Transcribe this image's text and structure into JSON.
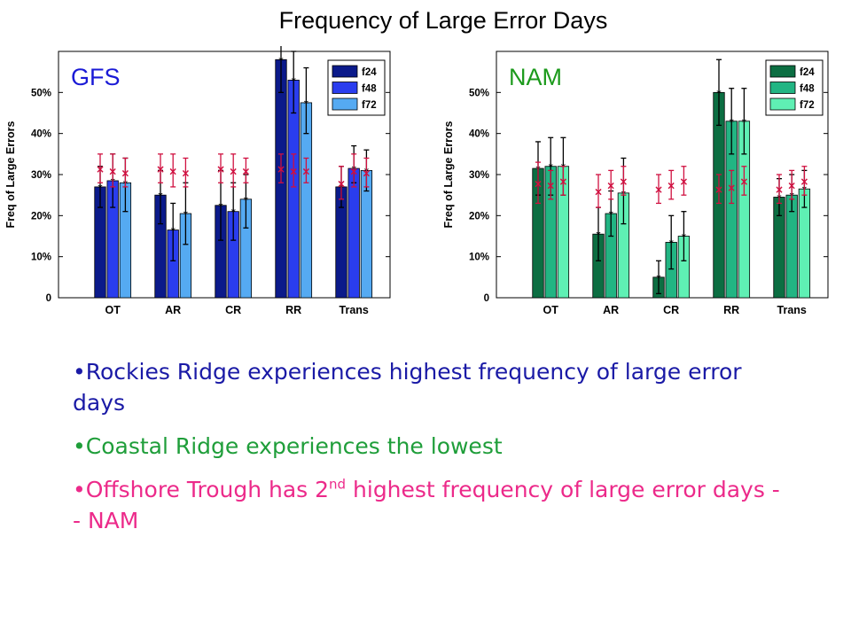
{
  "title": "Frequency of Large Error Days",
  "chart_data": [
    {
      "type": "bar",
      "panel_label": "GFS",
      "panel_label_color": "#1a1ad6",
      "ylabel": "Freq of Large Errors",
      "ylim": [
        0,
        60
      ],
      "yticks": [
        "0",
        "10%",
        "20%",
        "30%",
        "40%",
        "50%"
      ],
      "categories": [
        "OT",
        "AR",
        "CR",
        "RR",
        "Trans"
      ],
      "legend_position": "top-right",
      "series": [
        {
          "name": "f24",
          "color": "#0b1a8a",
          "values": [
            27,
            25,
            22.5,
            58,
            27
          ],
          "error": [
            [
              22,
              32
            ],
            [
              18,
              31
            ],
            [
              14,
              31
            ],
            [
              50,
              62
            ],
            [
              22,
              32
            ]
          ]
        },
        {
          "name": "f48",
          "color": "#2a3dee",
          "values": [
            28.5,
            16.5,
            21,
            53,
            31.5
          ],
          "error": [
            [
              22,
              35
            ],
            [
              9,
              23
            ],
            [
              14,
              28
            ],
            [
              45,
              60
            ],
            [
              28,
              37
            ]
          ]
        },
        {
          "name": "f72",
          "color": "#55aaf2",
          "values": [
            28,
            20.5,
            24,
            47.5,
            31
          ],
          "error": [
            [
              21,
              34
            ],
            [
              13,
              28
            ],
            [
              17,
              30
            ],
            [
              40,
              56
            ],
            [
              26,
              36
            ]
          ]
        }
      ],
      "ref_markers": [
        [
          31.5,
          31,
          30.5
        ],
        [
          31.5,
          31,
          30.5
        ],
        [
          31.5,
          31,
          31
        ],
        [
          31.5,
          31,
          31
        ],
        [
          28,
          31,
          30.5
        ]
      ],
      "ref_error": [
        [
          [
            28,
            35
          ],
          [
            27,
            35
          ],
          [
            27,
            34
          ]
        ],
        [
          [
            28,
            35
          ],
          [
            27,
            35
          ],
          [
            27,
            34
          ]
        ],
        [
          [
            28,
            35
          ],
          [
            27,
            35
          ],
          [
            28,
            34
          ]
        ],
        [
          [
            28,
            35
          ],
          [
            27,
            35
          ],
          [
            28,
            34
          ]
        ],
        [
          [
            24,
            32
          ],
          [
            27,
            35
          ],
          [
            27,
            34
          ]
        ]
      ]
    },
    {
      "type": "bar",
      "panel_label": "NAM",
      "panel_label_color": "#1c9a1c",
      "ylabel": "Freq of Large Errors",
      "ylim": [
        0,
        60
      ],
      "yticks": [
        "0",
        "10%",
        "20%",
        "30%",
        "40%",
        "50%"
      ],
      "categories": [
        "OT",
        "AR",
        "CR",
        "RR",
        "Trans"
      ],
      "legend_position": "top-right",
      "series": [
        {
          "name": "f24",
          "color": "#0c6e42",
          "values": [
            31.5,
            15.5,
            5,
            50,
            24.5
          ],
          "error": [
            [
              25,
              38
            ],
            [
              9,
              22
            ],
            [
              1,
              9
            ],
            [
              42,
              58
            ],
            [
              20,
              29
            ]
          ]
        },
        {
          "name": "f48",
          "color": "#22b583",
          "values": [
            32,
            20.5,
            13.5,
            43,
            25
          ],
          "error": [
            [
              25,
              39
            ],
            [
              15,
              26
            ],
            [
              7,
              20
            ],
            [
              35,
              51
            ],
            [
              21,
              30
            ]
          ]
        },
        {
          "name": "f72",
          "color": "#5ff0b4",
          "values": [
            32,
            25.5,
            15,
            43,
            26.5
          ],
          "error": [
            [
              25,
              39
            ],
            [
              18,
              34
            ],
            [
              9,
              21
            ],
            [
              35,
              51
            ],
            [
              22,
              31
            ]
          ]
        }
      ],
      "ref_markers": [
        [
          28,
          27.5,
          28.5
        ],
        [
          26,
          27.5,
          28.5
        ],
        [
          26.5,
          27.5,
          28.5
        ],
        [
          26.5,
          27,
          28.5
        ],
        [
          26.5,
          27.5,
          28.5
        ]
      ],
      "ref_error": [
        [
          [
            23,
            33
          ],
          [
            24,
            31
          ],
          [
            25,
            32
          ]
        ],
        [
          [
            22,
            30
          ],
          [
            24,
            31
          ],
          [
            25,
            32
          ]
        ],
        [
          [
            23,
            30
          ],
          [
            24,
            31
          ],
          [
            25,
            32
          ]
        ],
        [
          [
            23,
            30
          ],
          [
            23,
            31
          ],
          [
            25,
            32
          ]
        ],
        [
          [
            23,
            30
          ],
          [
            24,
            31
          ],
          [
            25,
            32
          ]
        ]
      ]
    }
  ],
  "bullets": {
    "b1": "•Rockies Ridge experiences highest frequency of large error days",
    "b2": "•Coastal Ridge experiences the lowest",
    "b3_pre": "•Offshore Trough has 2",
    "b3_sup": "nd",
    "b3_post": " highest frequency of large error days -- NAM"
  }
}
